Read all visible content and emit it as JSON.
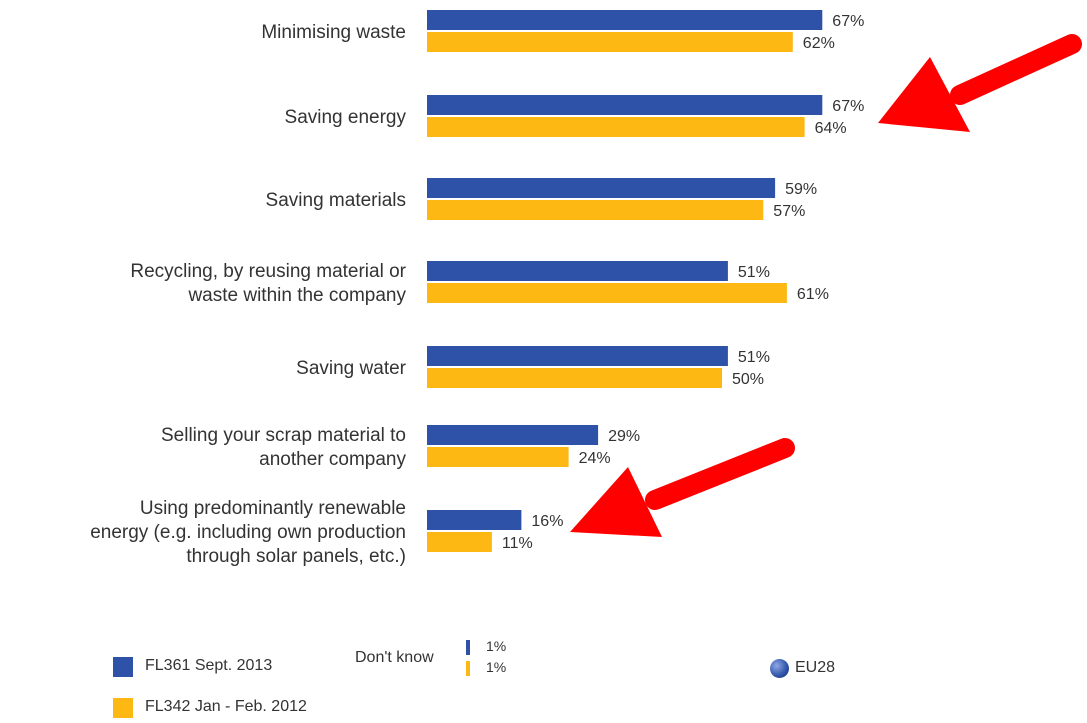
{
  "chart_data": {
    "type": "bar",
    "orientation": "horizontal",
    "categories": [
      [
        "Minimising waste"
      ],
      [
        "Saving energy"
      ],
      [
        "Saving materials"
      ],
      [
        "Recycling, by reusing material or",
        "waste within the company"
      ],
      [
        "Saving water"
      ],
      [
        "Selling your scrap material to",
        "another company"
      ],
      [
        "Using predominantly renewable",
        "energy (e.g. including own production",
        "through solar panels, etc.)"
      ]
    ],
    "series": [
      {
        "name": "FL361 Sept. 2013",
        "color": "#2E52A7",
        "values": [
          67,
          67,
          59,
          51,
          51,
          29,
          16
        ],
        "labels": [
          "67%",
          "67%",
          "59%",
          "51%",
          "51%",
          "29%",
          "16%"
        ]
      },
      {
        "name": "FL342 Jan - Feb. 2012",
        "color": "#FDB813",
        "values": [
          62,
          64,
          57,
          61,
          50,
          24,
          11
        ],
        "labels": [
          "62%",
          "64%",
          "57%",
          "61%",
          "50%",
          "24%",
          "11%"
        ]
      }
    ],
    "xlim": [
      0,
      100
    ],
    "grid": false,
    "legend_position": "bottom-left"
  },
  "legend": {
    "series1_label": "FL361 Sept. 2013",
    "series2_label": "FL342 Jan - Feb. 2012",
    "dont_know_label": "Don't know",
    "dont_know_values": [
      "1%",
      "1%"
    ],
    "region_label": "EU28",
    "globe_color": "#2E52A7"
  },
  "annotations": [
    {
      "type": "arrow",
      "color": "#FF0000",
      "target": "Saving energy"
    },
    {
      "type": "arrow",
      "color": "#FF0000",
      "target": "Using predominantly renewable energy"
    }
  ]
}
